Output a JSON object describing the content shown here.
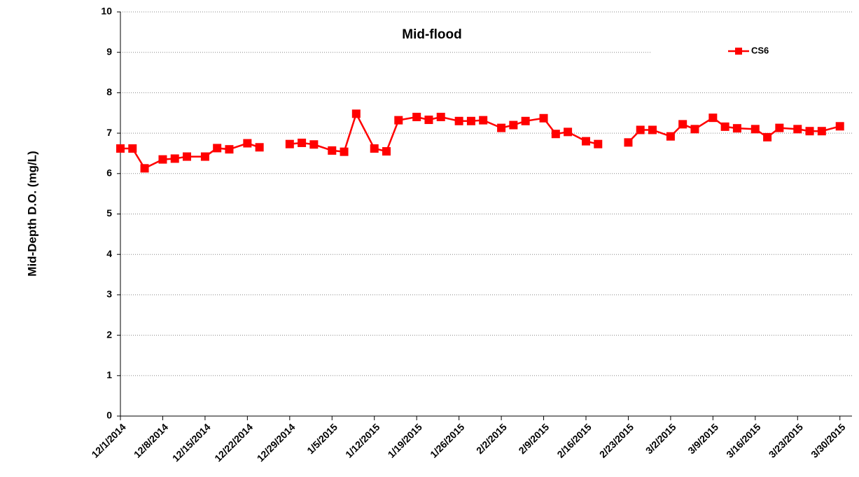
{
  "chart_data": {
    "type": "line",
    "title": "Mid-flood",
    "y_label": "Mid-Depth D.O. (mg/L)",
    "x": [
      "2014-12-01",
      "2014-12-03",
      "2014-12-05",
      "2014-12-08",
      "2014-12-10",
      "2014-12-12",
      "2014-12-15",
      "2014-12-17",
      "2014-12-19",
      "2014-12-22",
      "2014-12-24",
      "2014-12-26",
      "2014-12-29",
      "2014-12-31",
      "2015-01-02",
      "2015-01-05",
      "2015-01-07",
      "2015-01-09",
      "2015-01-12",
      "2015-01-14",
      "2015-01-16",
      "2015-01-19",
      "2015-01-21",
      "2015-01-23",
      "2015-01-26",
      "2015-01-28",
      "2015-01-30",
      "2015-02-02",
      "2015-02-04",
      "2015-02-06",
      "2015-02-09",
      "2015-02-11",
      "2015-02-13",
      "2015-02-16",
      "2015-02-18",
      "2015-02-20",
      "2015-02-23",
      "2015-02-25",
      "2015-02-27",
      "2015-03-02",
      "2015-03-04",
      "2015-03-06",
      "2015-03-09",
      "2015-03-11",
      "2015-03-13",
      "2015-03-16",
      "2015-03-18",
      "2015-03-20",
      "2015-03-23",
      "2015-03-25",
      "2015-03-27",
      "2015-03-30"
    ],
    "series": [
      {
        "name": "CS6",
        "color": "#ff0000",
        "values": [
          6.62,
          6.62,
          6.13,
          6.35,
          6.37,
          6.42,
          6.42,
          6.63,
          6.6,
          6.75,
          6.65,
          null,
          6.73,
          6.76,
          6.72,
          6.57,
          6.54,
          7.48,
          6.62,
          6.55,
          7.32,
          7.4,
          7.33,
          7.4,
          7.3,
          7.3,
          7.32,
          7.13,
          7.2,
          7.3,
          7.37,
          6.98,
          7.03,
          6.8,
          6.73,
          null,
          6.77,
          7.08,
          7.08,
          6.92,
          7.22,
          7.1,
          7.38,
          7.16,
          7.12,
          7.1,
          6.9,
          7.13,
          7.1,
          7.05,
          7.05,
          7.17
        ]
      }
    ],
    "xlim": [
      "2014-12-01",
      "2015-04-01"
    ],
    "xticks": [
      {
        "value": "2014-12-01",
        "label": "12/1/2014"
      },
      {
        "value": "2014-12-08",
        "label": "12/8/2014"
      },
      {
        "value": "2014-12-15",
        "label": "12/15/2014"
      },
      {
        "value": "2014-12-22",
        "label": "12/22/2014"
      },
      {
        "value": "2014-12-29",
        "label": "12/29/2014"
      },
      {
        "value": "2015-01-05",
        "label": "1/5/2015"
      },
      {
        "value": "2015-01-12",
        "label": "1/12/2015"
      },
      {
        "value": "2015-01-19",
        "label": "1/19/2015"
      },
      {
        "value": "2015-01-26",
        "label": "1/26/2015"
      },
      {
        "value": "2015-02-02",
        "label": "2/2/2015"
      },
      {
        "value": "2015-02-09",
        "label": "2/9/2015"
      },
      {
        "value": "2015-02-16",
        "label": "2/16/2015"
      },
      {
        "value": "2015-02-23",
        "label": "2/23/2015"
      },
      {
        "value": "2015-03-02",
        "label": "3/2/2015"
      },
      {
        "value": "2015-03-09",
        "label": "3/9/2015"
      },
      {
        "value": "2015-03-16",
        "label": "3/16/2015"
      },
      {
        "value": "2015-03-23",
        "label": "3/23/2015"
      },
      {
        "value": "2015-03-30",
        "label": "3/30/2015"
      }
    ],
    "ylim": [
      0,
      10
    ],
    "yticks": [
      0,
      1,
      2,
      3,
      4,
      5,
      6,
      7,
      8,
      9,
      10
    ],
    "grid": true,
    "legend": "upper right"
  }
}
